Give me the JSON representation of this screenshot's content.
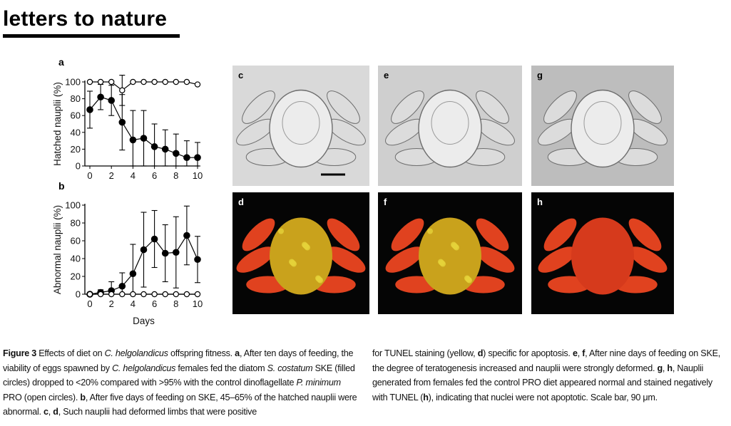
{
  "journal": {
    "header": "letters to nature"
  },
  "panels": {
    "a": {
      "label": "a"
    },
    "b": {
      "label": "b"
    },
    "micrographs": [
      {
        "label": "c",
        "bg": "#d9d9d9",
        "type": "dic"
      },
      {
        "label": "e",
        "bg": "#cfcfcf",
        "type": "dic"
      },
      {
        "label": "g",
        "bg": "#bdbdbd",
        "type": "dic"
      },
      {
        "label": "d",
        "bg": "#050505",
        "type": "tunel"
      },
      {
        "label": "f",
        "bg": "#050505",
        "type": "tunel"
      },
      {
        "label": "h",
        "bg": "#050505",
        "type": "tunel"
      }
    ]
  },
  "chart_data": [
    {
      "panel": "a",
      "type": "line",
      "title": "",
      "xlabel": "",
      "ylabel": "Hatched nauplii (%)",
      "xlim": [
        0,
        10
      ],
      "ylim": [
        0,
        100
      ],
      "xticks": [
        "0",
        "2",
        "4",
        "6",
        "8",
        "10"
      ],
      "yticks": [
        "0",
        "20",
        "40",
        "60",
        "80",
        "100"
      ],
      "series": [
        {
          "marker": "filled",
          "x": [
            0,
            1,
            2,
            3,
            4,
            5,
            6,
            7,
            8,
            9,
            10
          ],
          "values": [
            67,
            82,
            78,
            52,
            31,
            33,
            23,
            20,
            15,
            10,
            10
          ],
          "err": [
            22,
            15,
            18,
            33,
            35,
            33,
            27,
            23,
            23,
            20,
            18
          ]
        },
        {
          "marker": "open",
          "x": [
            0,
            1,
            2,
            3,
            4,
            5,
            6,
            7,
            8,
            9,
            10
          ],
          "values": [
            100,
            100,
            100,
            90,
            100,
            100,
            100,
            100,
            100,
            100,
            97
          ],
          "err": [
            0,
            0,
            0,
            18,
            0,
            0,
            0,
            0,
            0,
            0,
            0
          ]
        }
      ]
    },
    {
      "panel": "b",
      "type": "line",
      "title": "",
      "xlabel": "Days",
      "ylabel": "Abnormal nauplii (%)",
      "xlim": [
        0,
        10
      ],
      "ylim": [
        0,
        100
      ],
      "xticks": [
        "0",
        "2",
        "4",
        "6",
        "8",
        "10"
      ],
      "yticks": [
        "0",
        "20",
        "40",
        "60",
        "80",
        "100"
      ],
      "series": [
        {
          "marker": "filled",
          "x": [
            0,
            1,
            2,
            3,
            4,
            5,
            6,
            7,
            8,
            9,
            10
          ],
          "values": [
            0,
            2,
            4,
            9,
            23,
            50,
            62,
            46,
            47,
            66,
            39
          ],
          "err": [
            0,
            3,
            10,
            15,
            33,
            42,
            32,
            32,
            40,
            33,
            26
          ]
        },
        {
          "marker": "open",
          "x": [
            0,
            1,
            2,
            3,
            4,
            5,
            6,
            7,
            8,
            9,
            10
          ],
          "values": [
            0,
            0,
            0,
            0,
            0,
            0,
            0,
            0,
            0,
            0,
            0
          ],
          "err": [
            0,
            0,
            0,
            0,
            0,
            0,
            0,
            0,
            0,
            0,
            0
          ]
        }
      ]
    }
  ],
  "caption": {
    "fig": "Figure 3",
    "col1": {
      "t1": " Effects of diet on ",
      "i1": "C. helgolandicus",
      "t2": " offspring fitness. ",
      "b1": "a",
      "t3": ", After ten days of feeding, the viability of eggs spawned by ",
      "i2": "C. helgolandicus",
      "t4": " females fed the diatom ",
      "i3": "S. costatum",
      "t5": " SKE (filled circles) dropped to <20% compared with >95% with the control dinoflagellate ",
      "i4": "P. minimum",
      "t6": " PRO (open circles). ",
      "b2": "b",
      "t7": ", After five days of feeding on SKE, 45–65% of the hatched nauplii were abnormal. ",
      "b3": "c",
      "t8": ", ",
      "b4": "d",
      "t9": ", Such nauplii had deformed limbs that were positive"
    },
    "col2": {
      "t1": "for TUNEL staining (yellow, ",
      "b1": "d",
      "t2": ") specific for apoptosis. ",
      "b2": "e",
      "t3": ", ",
      "b3": "f",
      "t4": ", After nine days of feeding on SKE, the degree of teratogenesis increased and nauplii were strongly deformed. ",
      "b4": "g",
      "t5": ", ",
      "b5": "h",
      "t6": ", Nauplii generated from females fed the control PRO diet appeared normal and stained negatively with TUNEL (",
      "b6": "h",
      "t7": "), indicating that nuclei were not apoptotic. Scale bar, 90 μm."
    }
  }
}
